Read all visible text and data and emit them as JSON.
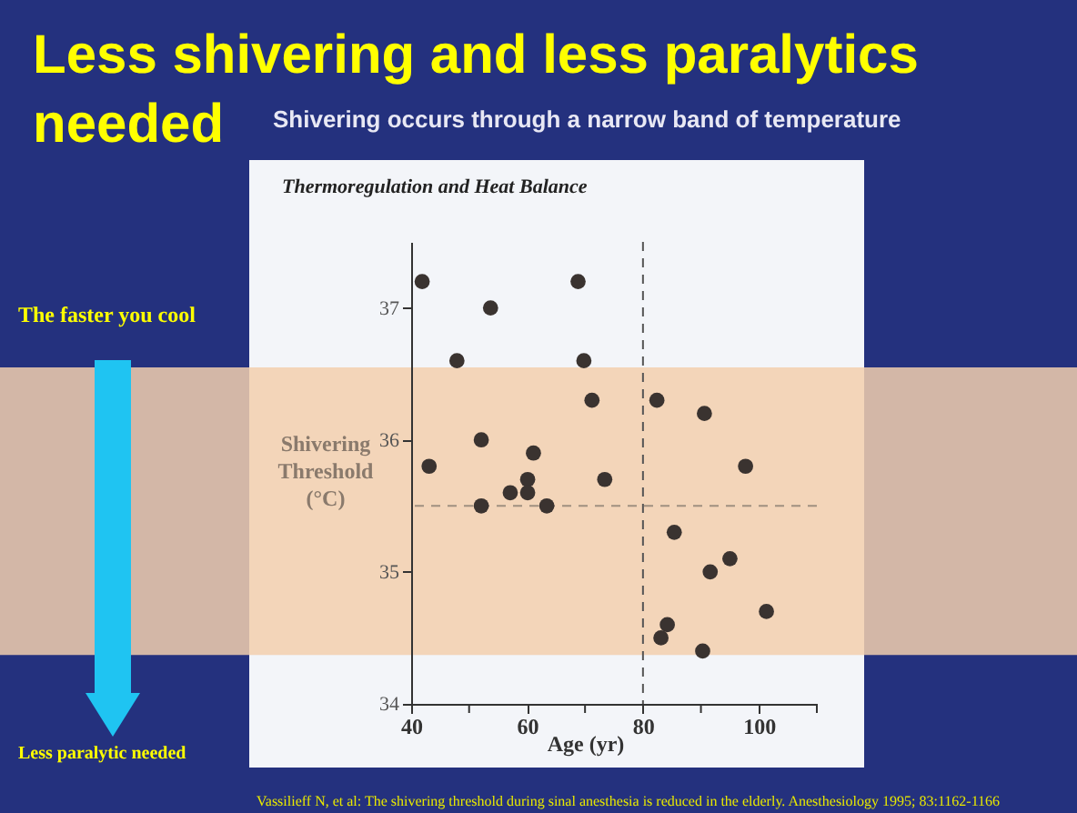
{
  "chart_data": {
    "type": "scatter",
    "title": "Less shivering and less paralytics needed",
    "subtitle": "Shivering occurs through a narrow band of temperature",
    "xlabel": "Age (yr)",
    "ylabel": "Shivering Threshold (°C)",
    "series": [
      {
        "color": "#3a3330",
        "x": [
          41.9,
          53.7,
          47.9,
          68.8,
          69.8,
          71.2,
          82.4,
          90.6,
          43.1,
          52.1,
          61.1,
          52.1,
          57.1,
          60.1,
          60.1,
          63.4,
          73.4,
          97.7,
          85.4,
          91.6,
          95.0,
          101.3,
          84.2,
          83.1,
          90.3
        ],
        "values": [
          37.2,
          37.0,
          36.6,
          37.2,
          36.6,
          36.3,
          36.3,
          36.2,
          35.8,
          36.0,
          35.9,
          35.5,
          35.6,
          35.7,
          35.6,
          35.5,
          35.7,
          35.8,
          35.3,
          35.0,
          35.1,
          34.7,
          34.6,
          34.5,
          34.4
        ]
      }
    ],
    "xlim": [
      40,
      110
    ],
    "ylim": [
      34,
      37.5
    ],
    "xticks": [
      40,
      {
        "value": 50,
        "label": null
      },
      60,
      {
        "value": 70,
        "label": null
      },
      80,
      {
        "value": 90,
        "label": null
      },
      100,
      {
        "value": 110,
        "label": null
      }
    ],
    "yticks": [
      34,
      35,
      36,
      37
    ],
    "ref_lines": [
      {
        "axis": "x",
        "value": 80,
        "label": null,
        "color": "#555555",
        "line_style": "dashed"
      },
      {
        "axis": "y",
        "value": 35.5,
        "label": null,
        "color": "#a09080",
        "line_style": "dashed"
      }
    ],
    "bands": [
      {
        "axis": "y",
        "from": 34.37,
        "to": 36.55,
        "label": null,
        "color": "#f2cfae"
      }
    ],
    "annotations": [
      "Thermoregulation and Heat Balance",
      "The faster you cool",
      "Less paralytic needed",
      "Vassilieff N, et al: The shivering threshold during sinal anesthesia is reduced in the elderly. Anesthesiology 1995; 83:1162-1166"
    ],
    "marker": "circle",
    "grid": false
  }
}
